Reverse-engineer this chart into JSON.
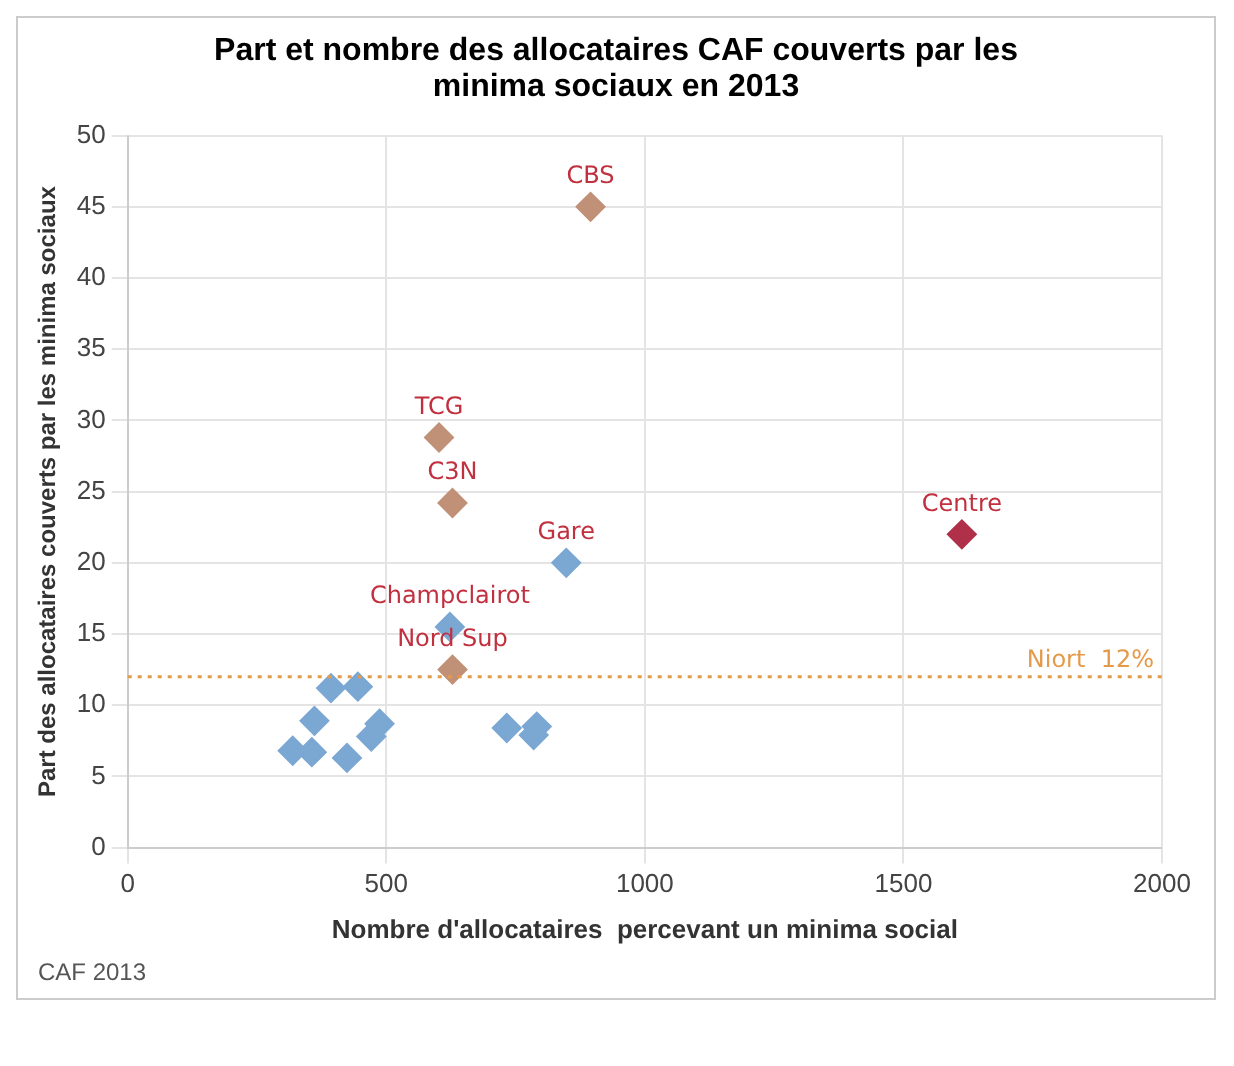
{
  "chart_data": {
    "type": "scatter",
    "title": "Part et nombre des allocataires CAF couverts par les minima sociaux  en 2013",
    "xlabel": "Nombre d'allocataires  percevant un minima social",
    "ylabel": "Part des allocataires couverts par les minima sociaux",
    "xlim": [
      0,
      2000
    ],
    "xticks": [
      0,
      500,
      1000,
      1500,
      2000
    ],
    "ylim": [
      0,
      50
    ],
    "yticks": [
      0,
      5,
      10,
      15,
      20,
      25,
      30,
      35,
      40,
      45,
      50
    ],
    "grid": true,
    "legend": false,
    "marker": "diamond",
    "series": [
      {
        "color": "#c09077",
        "x": [
          895,
          602,
          628,
          628
        ],
        "values": [
          45,
          28.8,
          24.2,
          12.5
        ]
      },
      {
        "color": "#b0304a",
        "x": [
          1613
        ],
        "values": [
          22
        ]
      },
      {
        "color": "#7ba7d3",
        "x": [
          848,
          623,
          791,
          785,
          733,
          445,
          393,
          487,
          471,
          361,
          424,
          356,
          319
        ],
        "values": [
          20,
          15.5,
          8.5,
          7.9,
          8.4,
          11.3,
          11.2,
          8.7,
          7.8,
          8.9,
          6.3,
          6.7,
          6.8
        ]
      }
    ],
    "ref_lines": [
      {
        "axis": "y",
        "value": 12,
        "label": "Niort  12%",
        "color": "#e39a4a",
        "line_style": "dotted"
      }
    ],
    "annotations": [
      {
        "text": "CBS",
        "x": 895,
        "y": 45
      },
      {
        "text": "TCG",
        "x": 602,
        "y": 28.8
      },
      {
        "text": "C3N",
        "x": 628,
        "y": 24.2
      },
      {
        "text": "Centre",
        "x": 1613,
        "y": 22
      },
      {
        "text": "Gare",
        "x": 848,
        "y": 20
      },
      {
        "text": "Champclairot",
        "x": 623,
        "y": 15.5
      },
      {
        "text": "Nord Sup",
        "x": 628,
        "y": 12.5
      },
      "CAF 2013"
    ]
  }
}
